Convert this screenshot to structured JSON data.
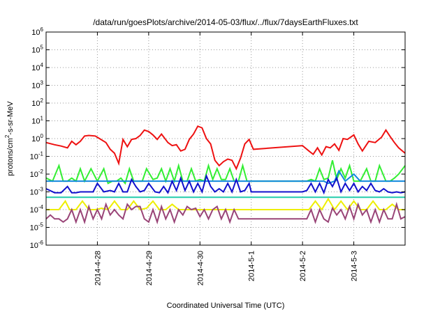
{
  "chart_data": {
    "type": "line",
    "title": "/data/run/goesPlots/archive/2014-05-03/flux/../flux/7daysEarthFluxes.txt",
    "xlabel": "Coordinated Universal Time (UTC)",
    "ylabel": {
      "pre": "protons/cm",
      "sup": "2",
      "post": "-s-sr-MeV"
    },
    "y_scale": "log",
    "ylim": [
      1e-06,
      1000000.0
    ],
    "xlim": [
      "2014-04-27 00:00",
      "2014-05-04 00:00"
    ],
    "y_ticks": [
      {
        "base": "10",
        "exp": "-6"
      },
      {
        "base": "10",
        "exp": "-5"
      },
      {
        "base": "10",
        "exp": "-4"
      },
      {
        "base": "10",
        "exp": "-3"
      },
      {
        "base": "10",
        "exp": "-2"
      },
      {
        "base": "10",
        "exp": "-1"
      },
      {
        "base": "10",
        "exp": "0"
      },
      {
        "base": "10",
        "exp": "1"
      },
      {
        "base": "10",
        "exp": "2"
      },
      {
        "base": "10",
        "exp": "3"
      },
      {
        "base": "10",
        "exp": "4"
      },
      {
        "base": "10",
        "exp": "5"
      },
      {
        "base": "10",
        "exp": "6"
      }
    ],
    "x_ticks": [
      "2014-4-28",
      "2014-4-29",
      "2014-4-30",
      "2014-5-1",
      "2014-5-2",
      "2014-5-3"
    ],
    "grid": "y major dotted; x major dotted",
    "series": [
      {
        "color": "#ee1111",
        "width": 2,
        "x": [
          "2014-04-27 00:00",
          "2014-04-27 04:00",
          "2014-04-27 07:00",
          "2014-04-27 10:00",
          "2014-04-27 12:00",
          "2014-04-27 14:00",
          "2014-04-27 16:00",
          "2014-04-27 18:00",
          "2014-04-27 20:00",
          "2014-04-27 23:00",
          "2014-04-28 01:00",
          "2014-04-28 04:00",
          "2014-04-28 06:00",
          "2014-04-28 08:00",
          "2014-04-28 10:00",
          "2014-04-28 12:00",
          "2014-04-28 14:00",
          "2014-04-28 16:00",
          "2014-04-28 18:00",
          "2014-04-28 20:00",
          "2014-04-28 22:00",
          "2014-04-29 00:00",
          "2014-04-29 02:00",
          "2014-04-29 04:00",
          "2014-04-29 06:00",
          "2014-04-29 09:00",
          "2014-04-29 11:00",
          "2014-04-29 13:00",
          "2014-04-29 15:00",
          "2014-04-29 17:00",
          "2014-04-29 19:00",
          "2014-04-29 21:00",
          "2014-04-29 23:00",
          "2014-04-30 01:00",
          "2014-04-30 03:00",
          "2014-04-30 05:00",
          "2014-04-30 07:00",
          "2014-04-30 09:00",
          "2014-04-30 11:00",
          "2014-04-30 13:00",
          "2014-04-30 15:00",
          "2014-04-30 17:00",
          "2014-04-30 19:00",
          "2014-04-30 21:00",
          "2014-04-30 23:00",
          "2014-05-01 01:00",
          "2014-05-02 00:00",
          "2014-05-02 03:00",
          "2014-05-02 05:00",
          "2014-05-02 07:00",
          "2014-05-02 09:00",
          "2014-05-02 11:00",
          "2014-05-02 13:00",
          "2014-05-02 15:00",
          "2014-05-02 17:00",
          "2014-05-02 19:00",
          "2014-05-02 21:00",
          "2014-05-03 00:00",
          "2014-05-03 02:00",
          "2014-05-03 04:00",
          "2014-05-03 07:00",
          "2014-05-03 10:00",
          "2014-05-03 13:00",
          "2014-05-03 15:00",
          "2014-05-03 17:00",
          "2014-05-03 19:00",
          "2014-05-03 21:00",
          "2014-05-04 00:00"
        ],
        "y": [
          0.6,
          0.45,
          0.38,
          0.3,
          0.7,
          0.45,
          0.7,
          1.4,
          1.5,
          1.4,
          1.0,
          0.6,
          0.25,
          0.15,
          0.04,
          0.9,
          0.35,
          0.9,
          1.0,
          1.5,
          3.0,
          2.5,
          1.6,
          0.9,
          1.8,
          0.6,
          0.4,
          0.45,
          0.2,
          0.25,
          0.9,
          1.8,
          5.0,
          4.0,
          1.0,
          0.5,
          0.06,
          0.03,
          0.05,
          0.07,
          0.06,
          0.02,
          0.08,
          0.5,
          0.9,
          0.25,
          0.4,
          0.2,
          0.13,
          0.3,
          0.12,
          0.35,
          0.3,
          0.5,
          0.22,
          1.0,
          0.9,
          1.6,
          0.5,
          0.2,
          0.7,
          0.6,
          1.2,
          3.0,
          1.3,
          0.6,
          0.3,
          0.15
        ]
      },
      {
        "color": "#33ee33",
        "width": 2,
        "x": [
          "2014-04-27 00:00",
          "2014-04-27 03:00",
          "2014-04-27 06:00",
          "2014-04-27 08:00",
          "2014-04-27 10:00",
          "2014-04-27 12:00",
          "2014-04-27 14:00",
          "2014-04-27 16:00",
          "2014-04-27 18:00",
          "2014-04-27 21:00",
          "2014-04-28 00:00",
          "2014-04-28 03:00",
          "2014-04-28 05:00",
          "2014-04-28 07:00",
          "2014-04-28 09:00",
          "2014-04-28 11:00",
          "2014-04-28 13:00",
          "2014-04-28 15:00",
          "2014-04-28 17:00",
          "2014-04-28 19:00",
          "2014-04-28 21:00",
          "2014-04-28 23:00",
          "2014-04-29 02:00",
          "2014-04-29 04:00",
          "2014-04-29 06:00",
          "2014-04-29 08:00",
          "2014-04-29 10:00",
          "2014-04-29 12:00",
          "2014-04-29 14:00",
          "2014-04-29 16:00",
          "2014-04-29 18:00",
          "2014-04-29 20:00",
          "2014-04-29 22:00",
          "2014-04-30 00:00",
          "2014-04-30 02:00",
          "2014-04-30 04:00",
          "2014-04-30 06:00",
          "2014-04-30 08:00",
          "2014-04-30 10:00",
          "2014-04-30 12:00",
          "2014-04-30 14:00",
          "2014-04-30 16:00",
          "2014-04-30 18:00",
          "2014-04-30 20:00",
          "2014-04-30 22:00",
          "2014-05-01 00:00",
          "2014-05-02 00:00",
          "2014-05-02 02:00",
          "2014-05-02 04:00",
          "2014-05-02 06:00",
          "2014-05-02 08:00",
          "2014-05-02 10:00",
          "2014-05-02 12:00",
          "2014-05-02 14:00",
          "2014-05-02 16:00",
          "2014-05-02 18:00",
          "2014-05-02 20:00",
          "2014-05-02 22:00",
          "2014-05-03 00:00",
          "2014-05-03 03:00",
          "2014-05-03 06:00",
          "2014-05-03 08:00",
          "2014-05-03 10:00",
          "2014-05-03 12:00",
          "2014-05-03 15:00",
          "2014-05-03 17:00",
          "2014-05-03 19:00",
          "2014-05-03 21:00",
          "2014-05-04 00:00"
        ],
        "y": [
          0.006,
          0.004,
          0.03,
          0.004,
          0.004,
          0.006,
          0.004,
          0.02,
          0.004,
          0.02,
          0.004,
          0.02,
          0.003,
          0.004,
          0.004,
          0.006,
          0.003,
          0.02,
          0.004,
          0.004,
          0.004,
          0.02,
          0.005,
          0.006,
          0.02,
          0.004,
          0.02,
          0.004,
          0.03,
          0.004,
          0.004,
          0.02,
          0.004,
          0.005,
          0.004,
          0.03,
          0.005,
          0.02,
          0.005,
          0.005,
          0.02,
          0.004,
          0.004,
          0.03,
          0.004,
          0.004,
          0.004,
          0.004,
          0.005,
          0.004,
          0.02,
          0.005,
          0.006,
          0.06,
          0.005,
          0.02,
          0.006,
          0.03,
          0.004,
          0.004,
          0.02,
          0.004,
          0.004,
          0.03,
          0.004,
          0.004,
          0.006,
          0.01,
          0.03
        ]
      },
      {
        "color": "#1188dd",
        "width": 2,
        "x": [
          "2014-04-27 00:00",
          "2014-04-27 12:00",
          "2014-04-28 00:00",
          "2014-04-28 12:00",
          "2014-04-29 00:00",
          "2014-04-29 12:00",
          "2014-04-30 00:00",
          "2014-04-30 12:00",
          "2014-05-01 00:00",
          "2014-05-02 00:00",
          "2014-05-02 10:00",
          "2014-05-02 12:00",
          "2014-05-02 15:00",
          "2014-05-02 17:00",
          "2014-05-02 20:00",
          "2014-05-03 00:00",
          "2014-05-03 03:00",
          "2014-05-03 08:00",
          "2014-05-04 00:00"
        ],
        "y": [
          0.004,
          0.004,
          0.004,
          0.004,
          0.004,
          0.004,
          0.004,
          0.004,
          0.004,
          0.004,
          0.004,
          0.003,
          0.004,
          0.015,
          0.004,
          0.01,
          0.004,
          0.004,
          0.004
        ]
      },
      {
        "color": "#1111cc",
        "width": 2,
        "x": [
          "2014-04-27 00:00",
          "2014-04-27 04:00",
          "2014-04-27 07:00",
          "2014-04-27 10:00",
          "2014-04-27 12:00",
          "2014-04-27 14:00",
          "2014-04-27 16:00",
          "2014-04-27 19:00",
          "2014-04-27 22:00",
          "2014-04-28 00:00",
          "2014-04-28 03:00",
          "2014-04-28 06:00",
          "2014-04-28 08:00",
          "2014-04-28 10:00",
          "2014-04-28 12:00",
          "2014-04-28 14:00",
          "2014-04-28 16:00",
          "2014-04-28 18:00",
          "2014-04-28 20:00",
          "2014-04-28 22:00",
          "2014-04-29 00:00",
          "2014-04-29 03:00",
          "2014-04-29 05:00",
          "2014-04-29 07:00",
          "2014-04-29 09:00",
          "2014-04-29 11:00",
          "2014-04-29 13:00",
          "2014-04-29 15:00",
          "2014-04-29 17:00",
          "2014-04-29 19:00",
          "2014-04-29 21:00",
          "2014-04-29 23:00",
          "2014-04-30 01:00",
          "2014-04-30 03:00",
          "2014-04-30 05:00",
          "2014-04-30 07:00",
          "2014-04-30 09:00",
          "2014-04-30 11:00",
          "2014-04-30 13:00",
          "2014-04-30 15:00",
          "2014-04-30 17:00",
          "2014-04-30 19:00",
          "2014-04-30 21:00",
          "2014-04-30 23:00",
          "2014-05-01 00:00",
          "2014-05-02 00:00",
          "2014-05-02 02:00",
          "2014-05-02 04:00",
          "2014-05-02 06:00",
          "2014-05-02 08:00",
          "2014-05-02 10:00",
          "2014-05-02 12:00",
          "2014-05-02 14:00",
          "2014-05-02 16:00",
          "2014-05-02 18:00",
          "2014-05-02 20:00",
          "2014-05-02 22:00",
          "2014-05-03 00:00",
          "2014-05-03 02:00",
          "2014-05-03 04:00",
          "2014-05-03 06:00",
          "2014-05-03 08:00",
          "2014-05-03 10:00",
          "2014-05-03 12:00",
          "2014-05-03 14:00",
          "2014-05-03 16:00",
          "2014-05-03 18:00",
          "2014-05-03 20:00",
          "2014-05-03 22:00",
          "2014-05-04 00:00"
        ],
        "y": [
          0.0015,
          0.0009,
          0.0009,
          0.002,
          0.0009,
          0.0009,
          0.001,
          0.001,
          0.001,
          0.003,
          0.001,
          0.0012,
          0.001,
          0.003,
          0.001,
          0.001,
          0.005,
          0.002,
          0.001,
          0.0012,
          0.003,
          0.001,
          0.0009,
          0.002,
          0.0009,
          0.004,
          0.0012,
          0.006,
          0.0012,
          0.004,
          0.001,
          0.003,
          0.001,
          0.008,
          0.002,
          0.001,
          0.0015,
          0.001,
          0.003,
          0.001,
          0.005,
          0.001,
          0.0012,
          0.003,
          0.001,
          0.001,
          0.0012,
          0.003,
          0.001,
          0.003,
          0.0009,
          0.005,
          0.002,
          0.006,
          0.001,
          0.003,
          0.0012,
          0.003,
          0.001,
          0.002,
          0.0012,
          0.003,
          0.0012,
          0.001,
          0.0015,
          0.001,
          0.0009,
          0.001,
          0.0009,
          0.001
        ]
      },
      {
        "color": "#22ccaa",
        "width": 2,
        "x": [
          "2014-04-27 00:00",
          "2014-04-28 00:00",
          "2014-04-29 00:00",
          "2014-04-30 00:00",
          "2014-05-01 00:00",
          "2014-05-02 00:00",
          "2014-05-03 00:00",
          "2014-05-04 00:00"
        ],
        "y": [
          0.0005,
          0.0005,
          0.0005,
          0.0005,
          0.0005,
          0.0005,
          0.0005,
          0.0005
        ]
      },
      {
        "color": "#eeee00",
        "width": 2,
        "x": [
          "2014-04-27 00:00",
          "2014-04-27 06:00",
          "2014-04-27 09:00",
          "2014-04-27 11:00",
          "2014-04-27 14:00",
          "2014-04-27 17:00",
          "2014-04-27 20:00",
          "2014-04-27 23:00",
          "2014-04-28 02:00",
          "2014-04-28 05:00",
          "2014-04-28 08:00",
          "2014-04-28 11:00",
          "2014-04-28 14:00",
          "2014-04-28 17:00",
          "2014-04-28 20:00",
          "2014-04-28 23:00",
          "2014-04-29 02:00",
          "2014-04-29 05:00",
          "2014-04-29 08:00",
          "2014-04-29 11:00",
          "2014-04-29 14:00",
          "2014-04-29 17:00",
          "2014-04-29 20:00",
          "2014-04-29 23:00",
          "2014-04-30 02:00",
          "2014-04-30 05:00",
          "2014-04-30 08:00",
          "2014-04-30 11:00",
          "2014-04-30 14:00",
          "2014-04-30 17:00",
          "2014-04-30 20:00",
          "2014-04-30 23:00",
          "2014-05-01 00:00",
          "2014-05-02 00:00",
          "2014-05-02 03:00",
          "2014-05-02 06:00",
          "2014-05-02 09:00",
          "2014-05-02 12:00",
          "2014-05-02 15:00",
          "2014-05-02 18:00",
          "2014-05-02 21:00",
          "2014-05-03 00:00",
          "2014-05-03 03:00",
          "2014-05-03 06:00",
          "2014-05-03 09:00",
          "2014-05-03 12:00",
          "2014-05-03 15:00",
          "2014-05-03 18:00",
          "2014-05-03 21:00",
          "2014-05-04 00:00"
        ],
        "y": [
          0.0001,
          0.0001,
          0.0003,
          0.0001,
          0.0001,
          0.0003,
          0.0001,
          0.0001,
          0.00012,
          0.0001,
          0.0003,
          0.0001,
          0.0001,
          0.0003,
          0.0001,
          0.00012,
          0.0003,
          0.0001,
          0.0001,
          0.0002,
          0.0001,
          0.0001,
          0.0001,
          0.0001,
          0.0001,
          0.0001,
          0.0001,
          0.0001,
          0.0001,
          0.0001,
          0.0001,
          0.0001,
          0.0001,
          0.0001,
          0.0001,
          0.0003,
          0.0001,
          0.0004,
          0.0001,
          0.0003,
          0.0001,
          0.0003,
          0.0001,
          0.0001,
          0.0003,
          0.0001,
          0.0001,
          0.0002,
          0.0001,
          0.0001
        ]
      },
      {
        "color": "#994477",
        "width": 2,
        "x": [
          "2014-04-27 00:00",
          "2014-04-27 02:00",
          "2014-04-27 04:00",
          "2014-04-27 06:00",
          "2014-04-27 08:00",
          "2014-04-27 10:00",
          "2014-04-27 12:00",
          "2014-04-27 14:00",
          "2014-04-27 16:00",
          "2014-04-27 18:00",
          "2014-04-27 20:00",
          "2014-04-27 22:00",
          "2014-04-28 00:00",
          "2014-04-28 02:00",
          "2014-04-28 04:00",
          "2014-04-28 06:00",
          "2014-04-28 08:00",
          "2014-04-28 10:00",
          "2014-04-28 12:00",
          "2014-04-28 14:00",
          "2014-04-28 16:00",
          "2014-04-28 18:00",
          "2014-04-28 20:00",
          "2014-04-28 22:00",
          "2014-04-29 00:00",
          "2014-04-29 02:00",
          "2014-04-29 04:00",
          "2014-04-29 06:00",
          "2014-04-29 08:00",
          "2014-04-29 10:00",
          "2014-04-29 12:00",
          "2014-04-29 14:00",
          "2014-04-29 16:00",
          "2014-04-29 18:00",
          "2014-04-29 20:00",
          "2014-04-29 22:00",
          "2014-04-30 00:00",
          "2014-04-30 02:00",
          "2014-04-30 04:00",
          "2014-04-30 06:00",
          "2014-04-30 08:00",
          "2014-04-30 10:00",
          "2014-04-30 12:00",
          "2014-04-30 14:00",
          "2014-04-30 16:00",
          "2014-04-30 18:00",
          "2014-04-30 20:00",
          "2014-04-30 22:00",
          "2014-05-01 00:00",
          "2014-05-02 00:00",
          "2014-05-02 02:00",
          "2014-05-02 04:00",
          "2014-05-02 06:00",
          "2014-05-02 08:00",
          "2014-05-02 10:00",
          "2014-05-02 12:00",
          "2014-05-02 14:00",
          "2014-05-02 16:00",
          "2014-05-02 18:00",
          "2014-05-02 20:00",
          "2014-05-02 22:00",
          "2014-05-03 00:00",
          "2014-05-03 02:00",
          "2014-05-03 04:00",
          "2014-05-03 06:00",
          "2014-05-03 08:00",
          "2014-05-03 10:00",
          "2014-05-03 12:00",
          "2014-05-03 14:00",
          "2014-05-03 16:00",
          "2014-05-03 18:00",
          "2014-05-03 20:00",
          "2014-05-03 22:00",
          "2014-05-04 00:00"
        ],
        "y": [
          3e-05,
          5e-05,
          3e-05,
          3e-05,
          2e-05,
          3e-05,
          0.0001,
          2e-05,
          0.0001,
          2e-05,
          0.00015,
          3e-05,
          0.0001,
          3e-05,
          0.0002,
          5e-05,
          0.0001,
          5e-05,
          3e-05,
          0.0002,
          0.0001,
          0.00015,
          0.00015,
          3e-05,
          2e-05,
          0.0001,
          2e-05,
          0.00015,
          3e-05,
          0.0001,
          2e-05,
          0.0001,
          5e-05,
          0.00015,
          0.0001,
          0.00012,
          4e-05,
          0.0001,
          3e-05,
          0.0001,
          0.00015,
          3e-05,
          0.0001,
          2e-05,
          0.0001,
          3e-05,
          3e-05,
          3e-05,
          3e-05,
          3e-05,
          3e-05,
          0.0001,
          2e-05,
          0.0001,
          3e-05,
          2e-05,
          0.00012,
          5e-05,
          0.0001,
          3e-05,
          0.00015,
          3e-05,
          0.0002,
          5e-05,
          0.0001,
          2e-05,
          0.0001,
          2e-05,
          0.0001,
          3e-05,
          3e-05,
          0.0002,
          3e-05,
          4e-05
        ]
      }
    ]
  }
}
